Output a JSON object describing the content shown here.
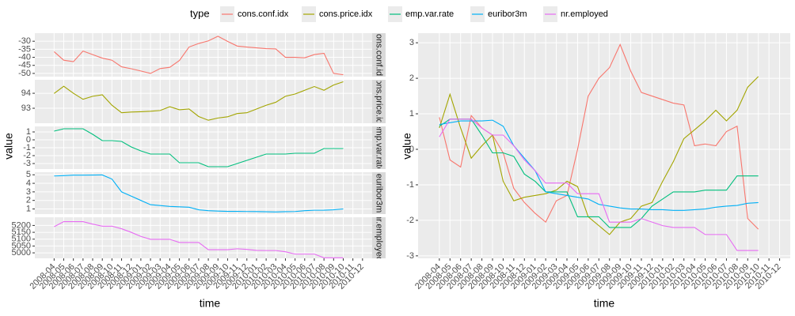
{
  "chart_data": [
    {
      "type": "line",
      "strip": "cons.conf.idx",
      "y_label": "value",
      "x_label": "time",
      "x": [
        "2008-04",
        "2008-05",
        "2008-06",
        "2008-07",
        "2008-08",
        "2008-09",
        "2008-10",
        "2008-11",
        "2008-12",
        "2009-01",
        "2009-02",
        "2009-03",
        "2009-04",
        "2009-05",
        "2009-06",
        "2009-07",
        "2009-08",
        "2009-09",
        "2009-10",
        "2009-11",
        "2009-12",
        "2010-01",
        "2010-02",
        "2010-03",
        "2010-04",
        "2010-05",
        "2010-06",
        "2010-07",
        "2010-08",
        "2010-09",
        "2010-10"
      ],
      "xlim": [
        "2008-02",
        "2011-01"
      ],
      "series": [
        {
          "name": "cons.conf.idx",
          "color": "#F8766D",
          "values": [
            -36.5,
            -41.8,
            -42.7,
            -36.1,
            -38.3,
            -40.5,
            -41.8,
            -45.9,
            -47.1,
            -48.5,
            -50.0,
            -47.0,
            -46.2,
            -42.0,
            -33.6,
            -31.4,
            -29.8,
            -26.9,
            -30.1,
            -33.0,
            -33.6,
            -34.1,
            -34.6,
            -34.8,
            -40.0,
            -40.0,
            -40.3,
            -38.3,
            -37.5,
            -50.0,
            -50.8
          ]
        }
      ],
      "ylim": [
        -52,
        -25
      ],
      "yticks": [
        -30,
        -35,
        -40,
        -45,
        -50
      ]
    },
    {
      "type": "line",
      "strip": "cons.price.idx",
      "x": [
        "2008-04",
        "2008-05",
        "2008-06",
        "2008-07",
        "2008-08",
        "2008-09",
        "2008-10",
        "2008-11",
        "2008-12",
        "2009-01",
        "2009-02",
        "2009-03",
        "2009-04",
        "2009-05",
        "2009-06",
        "2009-07",
        "2009-08",
        "2009-09",
        "2009-10",
        "2009-11",
        "2009-12",
        "2010-01",
        "2010-02",
        "2010-03",
        "2010-04",
        "2010-05",
        "2010-06",
        "2010-07",
        "2010-08",
        "2010-09",
        "2010-10"
      ],
      "xlim": [
        "2008-02",
        "2011-01"
      ],
      "series": [
        {
          "name": "cons.price.idx",
          "color": "#A3A500",
          "values": [
            93.99,
            94.47,
            94.0,
            93.6,
            93.8,
            93.9,
            93.2,
            92.7,
            92.75,
            92.77,
            92.8,
            92.85,
            93.1,
            92.9,
            92.95,
            92.45,
            92.2,
            92.35,
            92.43,
            92.65,
            92.7,
            92.95,
            93.2,
            93.4,
            93.8,
            93.95,
            94.2,
            94.45,
            94.2,
            94.55,
            94.77
          ]
        }
      ],
      "ylim": [
        92,
        94.9
      ],
      "yticks": [
        93,
        94
      ]
    },
    {
      "type": "line",
      "strip": "emp.var.rate",
      "x": [
        "2008-04",
        "2008-05",
        "2008-06",
        "2008-07",
        "2008-08",
        "2008-09",
        "2008-10",
        "2008-11",
        "2008-12",
        "2009-01",
        "2009-02",
        "2009-03",
        "2009-04",
        "2009-05",
        "2009-06",
        "2009-07",
        "2009-08",
        "2009-09",
        "2009-10",
        "2009-11",
        "2009-12",
        "2010-01",
        "2010-02",
        "2010-03",
        "2010-04",
        "2010-05",
        "2010-06",
        "2010-07",
        "2010-08",
        "2010-09",
        "2010-10"
      ],
      "xlim": [
        "2008-02",
        "2011-01"
      ],
      "series": [
        {
          "name": "emp.var.rate",
          "color": "#00BF7D",
          "values": [
            1.1,
            1.4,
            1.4,
            1.4,
            0.7,
            -0.1,
            -0.1,
            -0.2,
            -0.9,
            -1.4,
            -1.8,
            -1.8,
            -1.8,
            -2.9,
            -2.9,
            -2.9,
            -3.4,
            -3.4,
            -3.4,
            -3.0,
            -2.6,
            -2.2,
            -1.8,
            -1.8,
            -1.8,
            -1.7,
            -1.7,
            -1.7,
            -1.1,
            -1.1,
            -1.1
          ]
        }
      ],
      "ylim": [
        -3.7,
        1.7
      ],
      "yticks": [
        1,
        0,
        -1,
        -2,
        -3
      ]
    },
    {
      "type": "line",
      "strip": "euribor3m",
      "x": [
        "2008-04",
        "2008-05",
        "2008-06",
        "2008-07",
        "2008-08",
        "2008-09",
        "2008-10",
        "2008-11",
        "2008-12",
        "2009-01",
        "2009-02",
        "2009-03",
        "2009-04",
        "2009-05",
        "2009-06",
        "2009-07",
        "2009-08",
        "2009-09",
        "2009-10",
        "2009-11",
        "2009-12",
        "2010-01",
        "2010-02",
        "2010-03",
        "2010-04",
        "2010-05",
        "2010-06",
        "2010-07",
        "2010-08",
        "2010-09",
        "2010-10"
      ],
      "xlim": [
        "2008-02",
        "2011-01"
      ],
      "series": [
        {
          "name": "euribor3m",
          "color": "#00B0F6",
          "values": [
            4.86,
            4.9,
            4.96,
            4.96,
            4.97,
            4.98,
            4.5,
            3.0,
            2.5,
            2.0,
            1.5,
            1.4,
            1.3,
            1.25,
            1.2,
            0.9,
            0.8,
            0.75,
            0.72,
            0.72,
            0.7,
            0.69,
            0.67,
            0.65,
            0.68,
            0.7,
            0.8,
            0.85,
            0.86,
            0.9,
            1.0
          ]
        }
      ],
      "ylim": [
        0.4,
        5.3
      ],
      "yticks": [
        5,
        4,
        3,
        2,
        1
      ]
    },
    {
      "type": "line",
      "strip": "nr.employed",
      "x": [
        "2008-04",
        "2008-05",
        "2008-06",
        "2008-07",
        "2008-08",
        "2008-09",
        "2008-10",
        "2008-11",
        "2008-12",
        "2009-01",
        "2009-02",
        "2009-03",
        "2009-04",
        "2009-05",
        "2009-06",
        "2009-07",
        "2009-08",
        "2009-09",
        "2009-10",
        "2009-11",
        "2009-12",
        "2010-01",
        "2010-02",
        "2010-03",
        "2010-04",
        "2010-05",
        "2010-06",
        "2010-07",
        "2010-08",
        "2010-09",
        "2010-10"
      ],
      "xlim": [
        "2008-02",
        "2011-01"
      ],
      "xticks": [
        "2008-04",
        "2008-05",
        "2008-06",
        "2008-07",
        "2008-08",
        "2008-09",
        "2008-10",
        "2008-11",
        "2008-12",
        "2009-01",
        "2009-02",
        "2009-03",
        "2009-04",
        "2009-05",
        "2009-06",
        "2009-07",
        "2009-08",
        "2009-09",
        "2009-10",
        "2009-11",
        "2009-12",
        "2010-01",
        "2010-02",
        "2010-03",
        "2010-04",
        "2010-05",
        "2010-06",
        "2010-07",
        "2010-08",
        "2010-09",
        "2010-10",
        "2010-11",
        "2010-12"
      ],
      "series": [
        {
          "name": "nr.employed",
          "color": "#E76BF3",
          "values": [
            5191,
            5228,
            5228,
            5228,
            5210,
            5195,
            5195,
            5176,
            5150,
            5120,
            5099,
            5099,
            5099,
            5076,
            5076,
            5076,
            5023,
            5023,
            5023,
            5030,
            5025,
            5018,
            5017,
            5017,
            5008,
            4991,
            4991,
            4991,
            4964,
            4964,
            4964
          ]
        }
      ],
      "ylim": [
        4960,
        5260
      ],
      "yticks": [
        5200,
        5150,
        5100,
        5050,
        5000
      ]
    },
    {
      "type": "line",
      "y_label": "value",
      "x_label": "time",
      "legend_title": "type",
      "x": [
        "2008-04",
        "2008-05",
        "2008-06",
        "2008-07",
        "2008-08",
        "2008-09",
        "2008-10",
        "2008-11",
        "2008-12",
        "2009-01",
        "2009-02",
        "2009-03",
        "2009-04",
        "2009-05",
        "2009-06",
        "2009-07",
        "2009-08",
        "2009-09",
        "2009-10",
        "2009-11",
        "2009-12",
        "2010-01",
        "2010-02",
        "2010-03",
        "2010-04",
        "2010-05",
        "2010-06",
        "2010-07",
        "2010-08",
        "2010-09",
        "2010-10"
      ],
      "xlim": [
        "2008-02",
        "2011-01"
      ],
      "xticks": [
        "2008-04",
        "2008-05",
        "2008-06",
        "2008-07",
        "2008-08",
        "2008-09",
        "2008-10",
        "2008-11",
        "2008-12",
        "2009-01",
        "2009-02",
        "2009-03",
        "2009-04",
        "2009-05",
        "2009-06",
        "2009-07",
        "2009-08",
        "2009-09",
        "2009-10",
        "2009-11",
        "2009-12",
        "2010-01",
        "2010-02",
        "2010-03",
        "2010-04",
        "2010-05",
        "2010-06",
        "2010-07",
        "2010-08",
        "2010-09",
        "2010-10",
        "2010-11",
        "2010-12"
      ],
      "series": [
        {
          "name": "cons.conf.idx",
          "color": "#F8766D",
          "values": [
            0.9,
            -0.3,
            -0.5,
            0.95,
            0.6,
            0.4,
            -0.1,
            -1.1,
            -1.5,
            -1.8,
            -2.05,
            -1.45,
            -1.3,
            0.0,
            1.5,
            2.0,
            2.3,
            2.95,
            2.2,
            1.6,
            1.5,
            1.4,
            1.3,
            1.25,
            0.1,
            0.15,
            0.1,
            0.5,
            0.65,
            -1.95,
            -2.25
          ]
        },
        {
          "name": "cons.price.idx",
          "color": "#A3A500",
          "values": [
            0.6,
            1.55,
            0.6,
            -0.25,
            0.1,
            0.4,
            -0.9,
            -1.45,
            -1.35,
            -1.3,
            -1.25,
            -1.15,
            -0.9,
            -1.05,
            -1.9,
            -2.15,
            -2.4,
            -2.05,
            -1.95,
            -1.6,
            -1.5,
            -0.9,
            -0.35,
            0.3,
            0.55,
            0.8,
            1.1,
            0.8,
            1.1,
            1.75,
            2.05
          ]
        },
        {
          "name": "emp.var.rate",
          "color": "#00BF7D",
          "values": [
            0.65,
            0.85,
            0.85,
            0.85,
            0.4,
            -0.1,
            -0.1,
            -0.2,
            -0.7,
            -0.9,
            -1.2,
            -1.2,
            -1.2,
            -1.9,
            -1.9,
            -1.9,
            -2.2,
            -2.2,
            -2.2,
            -1.95,
            -1.6,
            -1.4,
            -1.2,
            -1.2,
            -1.2,
            -1.15,
            -1.15,
            -1.15,
            -0.75,
            -0.75,
            -0.75
          ]
        },
        {
          "name": "euribor3m",
          "color": "#00B0F6",
          "values": [
            0.7,
            0.75,
            0.8,
            0.8,
            0.8,
            0.82,
            0.65,
            0.1,
            -0.25,
            -0.6,
            -1.2,
            -1.25,
            -1.3,
            -1.35,
            -1.4,
            -1.55,
            -1.6,
            -1.65,
            -1.68,
            -1.68,
            -1.7,
            -1.7,
            -1.72,
            -1.72,
            -1.7,
            -1.68,
            -1.63,
            -1.6,
            -1.58,
            -1.52,
            -1.5
          ]
        },
        {
          "name": "nr.employed",
          "color": "#E76BF3",
          "values": [
            0.35,
            0.85,
            0.85,
            0.85,
            0.6,
            0.4,
            0.4,
            0.1,
            -0.3,
            -0.6,
            -0.95,
            -0.95,
            -0.95,
            -1.25,
            -1.25,
            -1.25,
            -2.05,
            -2.05,
            -2.05,
            -1.95,
            -2.05,
            -2.15,
            -2.2,
            -2.2,
            -2.2,
            -2.4,
            -2.4,
            -2.4,
            -2.85,
            -2.85,
            -2.85
          ]
        }
      ],
      "ylim": [
        -3.07,
        3.27
      ],
      "yticks": [
        3,
        2,
        1,
        0,
        -1,
        -2,
        -3
      ]
    }
  ]
}
